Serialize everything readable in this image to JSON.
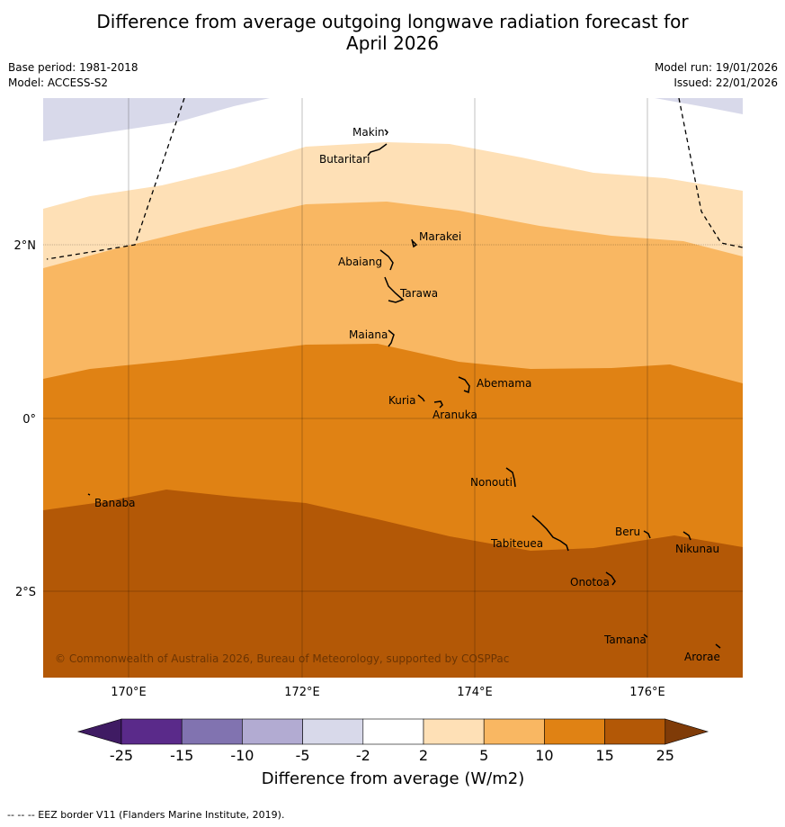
{
  "title": {
    "line1": "Difference from average outgoing longwave radiation forecast for",
    "line2": "April 2026"
  },
  "meta": {
    "base_period": "Base period: 1981-2018",
    "model": "Model: ACCESS-S2",
    "model_run": "Model run: 19/01/2026",
    "issued": "Issued: 22/01/2026"
  },
  "map": {
    "lat_labels": [
      "2°N",
      "0°",
      "2°S"
    ],
    "lon_labels": [
      "170°E",
      "172°E",
      "174°E",
      "176°E"
    ],
    "copyright": "© Commonwealth of Australia 2026, Bureau of Meteorology, supported by COSPPac",
    "islands": [
      "Makin",
      "Butaritari",
      "Marakei",
      "Abaiang",
      "Tarawa",
      "Maiana",
      "Abemama",
      "Kuria",
      "Aranuka",
      "Nonouti",
      "Banaba",
      "Tabiteuea",
      "Beru",
      "Nikunau",
      "Onotoa",
      "Tamana",
      "Arorae"
    ]
  },
  "colorbar": {
    "ticks": [
      "-25",
      "-15",
      "-10",
      "-5",
      "-2",
      "2",
      "5",
      "10",
      "15",
      "25"
    ],
    "label": "Difference from average (W/m2)",
    "colors": [
      "#3f1b63",
      "#5a2a8a",
      "#8173b0",
      "#b2abd2",
      "#d8d9ea",
      "#ffffff",
      "#fee0b6",
      "#f9b762",
      "#e08214",
      "#b35806",
      "#7f3b08"
    ]
  },
  "footer": "--  --  -- EEZ border V11 (Flanders Marine Institute, 2019)."
}
